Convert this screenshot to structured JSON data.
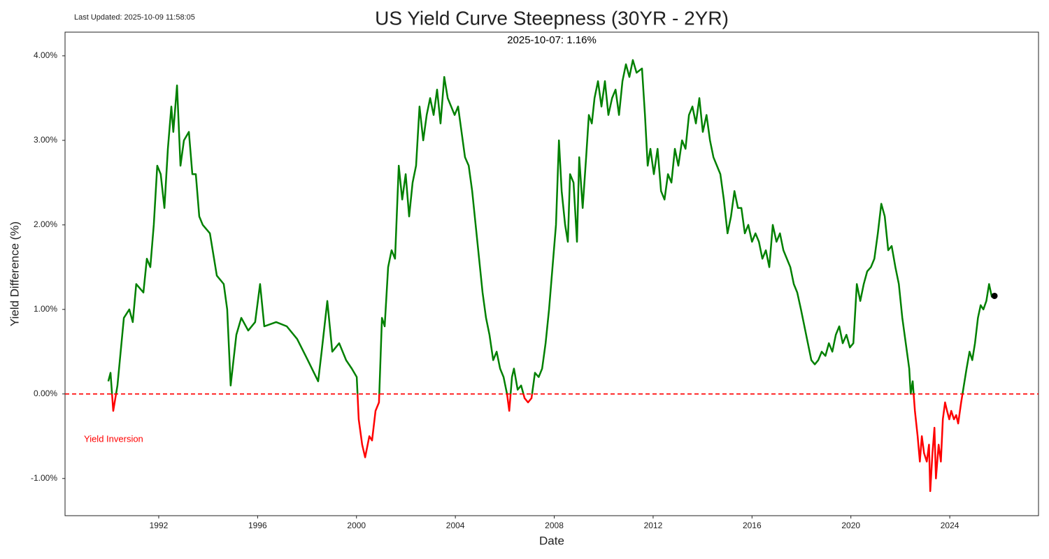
{
  "chart_data": {
    "type": "line",
    "title": "US Yield Curve Steepness (30YR - 2YR)",
    "last_updated": "Last Updated: 2025-10-09 11:58:05",
    "latest_label": "2025-10-07: 1.16%",
    "inversion_label": "Yield Inversion",
    "xlabel": "Date",
    "ylabel": "Yield Difference (%)",
    "color": "#008000",
    "negative_color": "#ff0000",
    "mark_last": true,
    "reference_line": {
      "value": 0,
      "color": "#ff0000",
      "dashed": true
    },
    "xlim": [
      1988.21,
      2027.59
    ],
    "xticks": [
      1992,
      1996,
      2000,
      2004,
      2008,
      2012,
      2016,
      2020,
      2024
    ],
    "ylim": [
      -1.44,
      4.28
    ],
    "yticks": [
      {
        "value": -1,
        "label": "-1.00%"
      },
      {
        "value": 0,
        "label": "0.00%"
      },
      {
        "value": 1,
        "label": "1.00%"
      },
      {
        "value": 2,
        "label": "2.00%"
      },
      {
        "value": 3,
        "label": "3.00%"
      },
      {
        "value": 4,
        "label": "4.00%"
      }
    ],
    "grid": false,
    "x": [
      1989.96,
      1990.05,
      1990.16,
      1990.33,
      1990.59,
      1990.81,
      1990.95,
      1991.09,
      1991.38,
      1991.52,
      1991.66,
      1991.8,
      1991.94,
      1992.08,
      1992.23,
      1992.37,
      1992.51,
      1992.59,
      1992.74,
      1992.88,
      1993.02,
      1993.22,
      1993.36,
      1993.5,
      1993.64,
      1993.78,
      1994.07,
      1994.35,
      1994.63,
      1994.77,
      1994.91,
      1995.14,
      1995.34,
      1995.62,
      1995.9,
      1996.1,
      1996.27,
      1996.75,
      1997.18,
      1997.6,
      1998.03,
      1998.45,
      1998.59,
      1998.82,
      1999.02,
      1999.3,
      1999.58,
      1999.81,
      2000.01,
      2000.09,
      2000.23,
      2000.35,
      2000.52,
      2000.63,
      2000.77,
      2000.91,
      2001.03,
      2001.14,
      2001.28,
      2001.42,
      2001.56,
      2001.71,
      2001.85,
      2001.99,
      2002.13,
      2002.27,
      2002.41,
      2002.55,
      2002.7,
      2002.84,
      2002.98,
      2003.12,
      2003.26,
      2003.4,
      2003.55,
      2003.69,
      2003.83,
      2003.97,
      2004.11,
      2004.25,
      2004.39,
      2004.54,
      2004.68,
      2004.82,
      2004.96,
      2005.1,
      2005.24,
      2005.38,
      2005.53,
      2005.67,
      2005.81,
      2005.95,
      2006.09,
      2006.18,
      2006.29,
      2006.37,
      2006.52,
      2006.66,
      2006.8,
      2006.94,
      2007.08,
      2007.22,
      2007.37,
      2007.51,
      2007.65,
      2007.79,
      2007.93,
      2008.07,
      2008.19,
      2008.3,
      2008.44,
      2008.55,
      2008.64,
      2008.78,
      2008.92,
      2009.01,
      2009.15,
      2009.29,
      2009.4,
      2009.52,
      2009.63,
      2009.77,
      2009.91,
      2010.05,
      2010.19,
      2010.34,
      2010.48,
      2010.62,
      2010.76,
      2010.9,
      2011.04,
      2011.18,
      2011.33,
      2011.55,
      2011.67,
      2011.78,
      2011.89,
      2012.03,
      2012.18,
      2012.32,
      2012.46,
      2012.6,
      2012.74,
      2012.88,
      2013.02,
      2013.17,
      2013.31,
      2013.45,
      2013.59,
      2013.73,
      2013.87,
      2014.01,
      2014.16,
      2014.3,
      2014.44,
      2014.58,
      2014.72,
      2014.86,
      2015.01,
      2015.15,
      2015.29,
      2015.43,
      2015.57,
      2015.71,
      2015.85,
      2016.0,
      2016.14,
      2016.28,
      2016.42,
      2016.56,
      2016.7,
      2016.84,
      2016.99,
      2017.13,
      2017.27,
      2017.41,
      2017.55,
      2017.69,
      2017.83,
      2017.98,
      2018.12,
      2018.26,
      2018.4,
      2018.54,
      2018.68,
      2018.82,
      2018.97,
      2019.11,
      2019.25,
      2019.39,
      2019.53,
      2019.67,
      2019.82,
      2019.96,
      2020.1,
      2020.24,
      2020.38,
      2020.52,
      2020.66,
      2020.81,
      2020.95,
      2021.09,
      2021.23,
      2021.37,
      2021.51,
      2021.65,
      2021.8,
      2021.94,
      2022.08,
      2022.22,
      2022.36,
      2022.42,
      2022.5,
      2022.59,
      2022.7,
      2022.79,
      2022.87,
      2022.96,
      2023.07,
      2023.16,
      2023.21,
      2023.3,
      2023.38,
      2023.44,
      2023.55,
      2023.64,
      2023.72,
      2023.81,
      2023.89,
      2023.98,
      2024.06,
      2024.17,
      2024.26,
      2024.34,
      2024.46,
      2024.57,
      2024.68,
      2024.8,
      2024.91,
      2025.02,
      2025.14,
      2025.25,
      2025.36,
      2025.48,
      2025.59,
      2025.7,
      2025.81
    ],
    "values": [
      0.15,
      0.25,
      -0.2,
      0.1,
      0.9,
      1.0,
      0.85,
      1.3,
      1.2,
      1.6,
      1.5,
      2.0,
      2.7,
      2.6,
      2.2,
      2.9,
      3.4,
      3.1,
      3.65,
      2.7,
      3.0,
      3.1,
      2.6,
      2.6,
      2.1,
      2.0,
      1.9,
      1.4,
      1.3,
      1.0,
      0.1,
      0.7,
      0.9,
      0.75,
      0.85,
      1.3,
      0.8,
      0.85,
      0.8,
      0.65,
      0.4,
      0.15,
      0.5,
      1.1,
      0.5,
      0.6,
      0.4,
      0.3,
      0.2,
      -0.3,
      -0.6,
      -0.75,
      -0.5,
      -0.55,
      -0.2,
      -0.1,
      0.9,
      0.8,
      1.5,
      1.7,
      1.6,
      2.7,
      2.3,
      2.6,
      2.1,
      2.5,
      2.7,
      3.4,
      3.0,
      3.3,
      3.5,
      3.3,
      3.6,
      3.2,
      3.75,
      3.5,
      3.4,
      3.3,
      3.4,
      3.1,
      2.8,
      2.7,
      2.4,
      2.0,
      1.6,
      1.2,
      0.9,
      0.7,
      0.4,
      0.5,
      0.3,
      0.2,
      0.0,
      -0.2,
      0.2,
      0.3,
      0.05,
      0.1,
      -0.05,
      -0.1,
      -0.05,
      0.25,
      0.2,
      0.3,
      0.6,
      1.0,
      1.5,
      2.0,
      3.0,
      2.4,
      2.0,
      1.8,
      2.6,
      2.5,
      1.8,
      2.8,
      2.2,
      2.8,
      3.3,
      3.2,
      3.5,
      3.7,
      3.4,
      3.7,
      3.3,
      3.5,
      3.6,
      3.3,
      3.7,
      3.9,
      3.75,
      3.95,
      3.8,
      3.85,
      3.3,
      2.7,
      2.9,
      2.6,
      2.9,
      2.4,
      2.3,
      2.6,
      2.5,
      2.9,
      2.7,
      3.0,
      2.9,
      3.3,
      3.4,
      3.2,
      3.5,
      3.1,
      3.3,
      3.0,
      2.8,
      2.7,
      2.6,
      2.3,
      1.9,
      2.1,
      2.4,
      2.2,
      2.2,
      1.9,
      2.0,
      1.8,
      1.9,
      1.8,
      1.6,
      1.7,
      1.5,
      2.0,
      1.8,
      1.9,
      1.7,
      1.6,
      1.5,
      1.3,
      1.2,
      1.0,
      0.8,
      0.6,
      0.4,
      0.35,
      0.4,
      0.5,
      0.45,
      0.6,
      0.5,
      0.7,
      0.8,
      0.6,
      0.7,
      0.55,
      0.6,
      1.3,
      1.1,
      1.3,
      1.45,
      1.5,
      1.6,
      1.9,
      2.25,
      2.1,
      1.7,
      1.75,
      1.5,
      1.3,
      0.9,
      0.6,
      0.3,
      0.0,
      0.15,
      -0.2,
      -0.5,
      -0.8,
      -0.5,
      -0.7,
      -0.8,
      -0.6,
      -1.15,
      -0.7,
      -0.4,
      -1.0,
      -0.6,
      -0.8,
      -0.3,
      -0.1,
      -0.2,
      -0.3,
      -0.2,
      -0.3,
      -0.25,
      -0.35,
      -0.1,
      0.1,
      0.3,
      0.5,
      0.4,
      0.6,
      0.9,
      1.05,
      1.0,
      1.1,
      1.3,
      1.15,
      1.16
    ]
  }
}
